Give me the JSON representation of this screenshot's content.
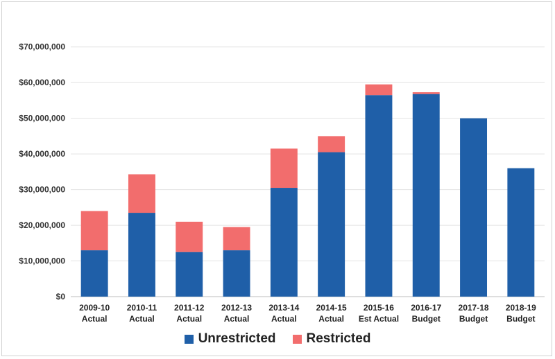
{
  "chart_data": {
    "type": "bar",
    "stacked": true,
    "title": "",
    "xlabel": "",
    "ylabel": "",
    "ylim": [
      0,
      75000000
    ],
    "yticks": [
      0,
      10000000,
      20000000,
      30000000,
      40000000,
      50000000,
      60000000,
      70000000
    ],
    "ytick_labels": [
      "$0",
      "$10,000,000",
      "$20,000,000",
      "$30,000,000",
      "$40,000,000",
      "$50,000,000",
      "$60,000,000",
      "$70,000,000"
    ],
    "grid": true,
    "legend_position": "bottom",
    "categories": [
      [
        "2009-10",
        "Actual"
      ],
      [
        "2010-11",
        "Actual"
      ],
      [
        "2011-12",
        "Actual"
      ],
      [
        "2012-13",
        "Actual"
      ],
      [
        "2013-14",
        "Actual"
      ],
      [
        "2014-15",
        "Actual"
      ],
      [
        "2015-16",
        "Est Actual"
      ],
      [
        "2016-17",
        "Budget"
      ],
      [
        "2017-18",
        "Budget"
      ],
      [
        "2018-19",
        "Budget"
      ]
    ],
    "series": [
      {
        "name": "Unrestricted",
        "color": "#1f5fa8",
        "values": [
          13000000,
          23500000,
          12500000,
          13000000,
          30500000,
          40500000,
          56500000,
          56800000,
          50000000,
          36000000
        ]
      },
      {
        "name": "Restricted",
        "color": "#f26d6d",
        "values": [
          11000000,
          10800000,
          8500000,
          6500000,
          11000000,
          4500000,
          3000000,
          500000,
          0,
          0
        ]
      }
    ]
  }
}
